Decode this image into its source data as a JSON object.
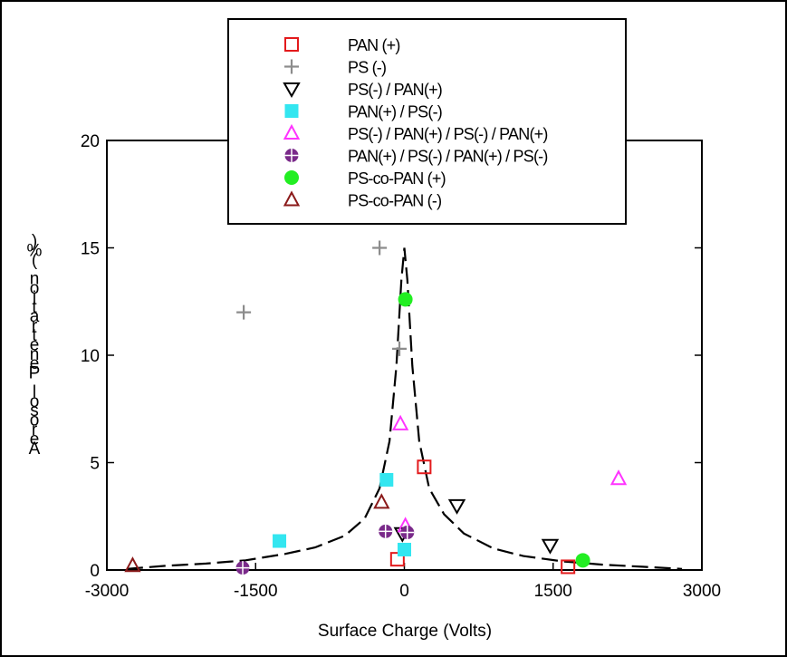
{
  "chart_data": {
    "type": "scatter",
    "xlabel": "Surface Charge (Volts)",
    "ylabel": "Aerosol Penetration (%)",
    "xlim": [
      -3000,
      3000
    ],
    "ylim": [
      0,
      20
    ],
    "xticks": [
      -3000,
      -1500,
      0,
      1500,
      3000
    ],
    "yticks": [
      0,
      5,
      10,
      15,
      20
    ],
    "grid": false,
    "legend_position": "top-center",
    "series": [
      {
        "name": "PAN (+)",
        "marker": "open-square",
        "color": "#e31a1c",
        "points": [
          [
            -70,
            0.5
          ],
          [
            200,
            4.8
          ],
          [
            1650,
            0.15
          ]
        ]
      },
      {
        "name": "PS (-)",
        "marker": "plus",
        "color": "#8c8c8c",
        "points": [
          [
            -1620,
            12.0
          ],
          [
            -250,
            15.0
          ],
          [
            -50,
            10.3
          ]
        ]
      },
      {
        "name": "PS(-) / PAN(+)",
        "marker": "open-triangle-down",
        "color": "#000000",
        "points": [
          [
            -20,
            1.7
          ],
          [
            530,
            3.0
          ],
          [
            1470,
            1.15
          ]
        ]
      },
      {
        "name": "PAN(+) / PS(-)",
        "marker": "filled-square",
        "color": "#33e6f0",
        "points": [
          [
            -1260,
            1.35
          ],
          [
            -180,
            4.2
          ],
          [
            0,
            0.95
          ]
        ]
      },
      {
        "name": "PS(-) / PAN(+) / PS(-) / PAN(+)",
        "marker": "open-triangle-up",
        "color": "#ff33ff",
        "points": [
          [
            -40,
            6.8
          ],
          [
            10,
            2.05
          ],
          [
            2160,
            4.25
          ]
        ]
      },
      {
        "name": "PAN(+) / PS(-) / PAN(+) / PS(-)",
        "marker": "circle-plus",
        "color": "#7a2a8a",
        "points": [
          [
            -1630,
            0.1
          ],
          [
            -190,
            1.8
          ],
          [
            30,
            1.75
          ]
        ]
      },
      {
        "name": "PS-co-PAN (+)",
        "marker": "filled-circle",
        "color": "#22ee22",
        "points": [
          [
            10,
            12.6
          ],
          [
            1800,
            0.45
          ]
        ]
      },
      {
        "name": "PS-co-PAN (-)",
        "marker": "open-triangle-up",
        "color": "#8b1a1a",
        "points": [
          [
            -2740,
            0.2
          ],
          [
            -230,
            3.15
          ]
        ]
      }
    ],
    "fit_curve": {
      "style": "dashed",
      "color": "#000000",
      "description_points": [
        [
          -2800,
          0.05
        ],
        [
          -2400,
          0.2
        ],
        [
          -2000,
          0.3
        ],
        [
          -1600,
          0.45
        ],
        [
          -1200,
          0.75
        ],
        [
          -900,
          1.05
        ],
        [
          -600,
          1.6
        ],
        [
          -400,
          2.4
        ],
        [
          -250,
          3.8
        ],
        [
          -150,
          6.0
        ],
        [
          -80,
          9.5
        ],
        [
          -30,
          13.5
        ],
        [
          0,
          15.0
        ],
        [
          30,
          13.5
        ],
        [
          80,
          9.5
        ],
        [
          150,
          6.0
        ],
        [
          250,
          3.8
        ],
        [
          400,
          2.6
        ],
        [
          600,
          1.7
        ],
        [
          900,
          1.0
        ],
        [
          1200,
          0.65
        ],
        [
          1600,
          0.4
        ],
        [
          2000,
          0.25
        ],
        [
          2400,
          0.15
        ],
        [
          2800,
          0.05
        ]
      ]
    }
  }
}
